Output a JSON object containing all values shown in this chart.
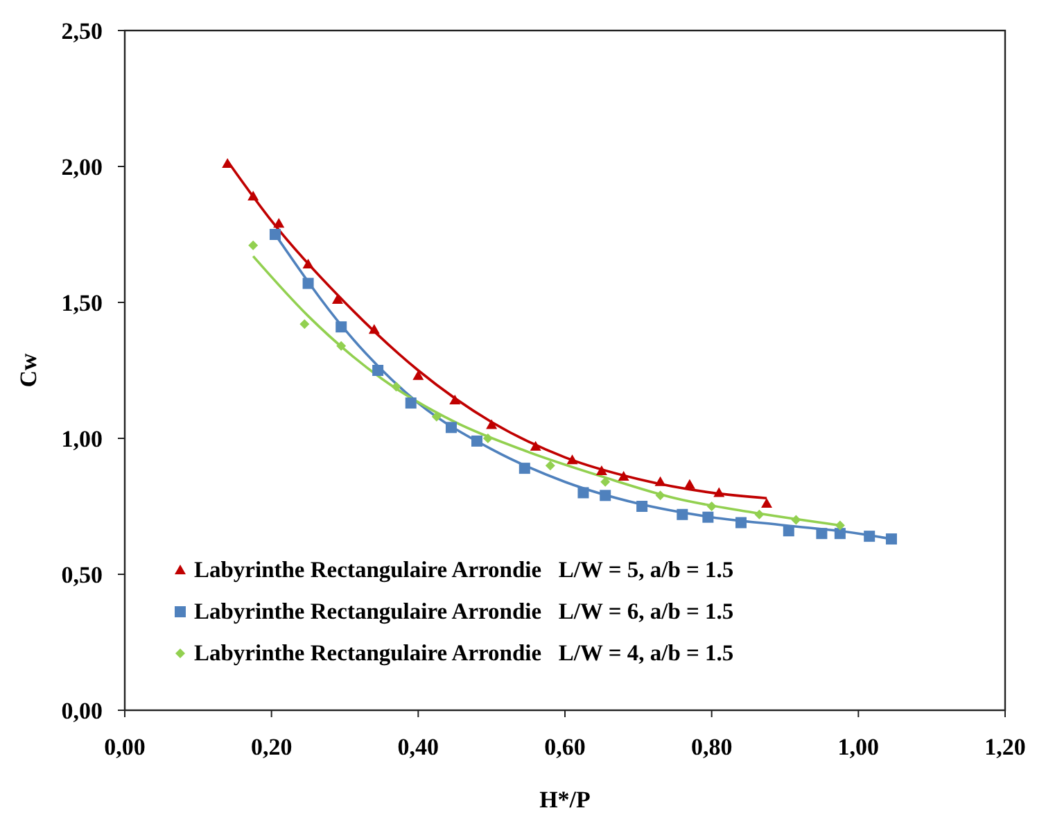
{
  "chart_data": {
    "type": "scatter",
    "xlabel": "H*/P",
    "ylabel": "Cw",
    "xlim": [
      0,
      1.2
    ],
    "xticks": [
      {
        "value": 0,
        "label": "0,00"
      },
      {
        "value": 0.2,
        "label": "0,20"
      },
      {
        "value": 0.4,
        "label": "0,40"
      },
      {
        "value": 0.6,
        "label": "0,60"
      },
      {
        "value": 0.8,
        "label": "0,80"
      },
      {
        "value": 1.0,
        "label": "1,00"
      },
      {
        "value": 1.2,
        "label": "1,20"
      }
    ],
    "ylim": [
      0,
      2.5
    ],
    "yticks": [
      {
        "value": 0,
        "label": "0,00"
      },
      {
        "value": 0.5,
        "label": "0,50"
      },
      {
        "value": 1.0,
        "label": "1,00"
      },
      {
        "value": 1.5,
        "label": "1,50"
      },
      {
        "value": 2.0,
        "label": "2,00"
      },
      {
        "value": 2.5,
        "label": "2,50"
      }
    ],
    "grid": false,
    "legend": "bottom left",
    "series": [
      {
        "name": "Labyrinthe Rectangulaire Arrondie   L/W = 5, a/b = 1.5",
        "color": "#c00000",
        "marker": "triangle",
        "x": [
          0.14,
          0.175,
          0.21,
          0.25,
          0.29,
          0.34,
          0.4,
          0.45,
          0.5,
          0.56,
          0.61,
          0.65,
          0.68,
          0.73,
          0.77,
          0.81,
          0.875
        ],
        "values": [
          2.01,
          1.89,
          1.79,
          1.64,
          1.51,
          1.4,
          1.23,
          1.14,
          1.05,
          0.97,
          0.92,
          0.88,
          0.86,
          0.84,
          0.83,
          0.8,
          0.76
        ]
      },
      {
        "name": "Labyrinthe Rectangulaire Arrondie   L/W = 6, a/b = 1.5",
        "color": "#4f81bd",
        "marker": "square",
        "x": [
          0.205,
          0.25,
          0.295,
          0.345,
          0.39,
          0.445,
          0.48,
          0.545,
          0.625,
          0.655,
          0.705,
          0.76,
          0.795,
          0.84,
          0.905,
          0.95,
          0.975,
          1.015,
          1.045
        ],
        "values": [
          1.75,
          1.57,
          1.41,
          1.25,
          1.13,
          1.04,
          0.99,
          0.89,
          0.8,
          0.79,
          0.75,
          0.72,
          0.71,
          0.69,
          0.66,
          0.65,
          0.65,
          0.64,
          0.63
        ]
      },
      {
        "name": "Labyrinthe Rectangulaire Arrondie   L/W = 4, a/b = 1.5",
        "color": "#92d050",
        "marker": "diamond",
        "x": [
          0.175,
          0.245,
          0.295,
          0.37,
          0.425,
          0.495,
          0.58,
          0.655,
          0.73,
          0.8,
          0.865,
          0.915,
          0.975
        ],
        "values": [
          1.71,
          1.42,
          1.34,
          1.19,
          1.08,
          1.0,
          0.9,
          0.84,
          0.79,
          0.75,
          0.72,
          0.7,
          0.68
        ]
      },
      {
        "type": "line",
        "color": "#c00000",
        "marker": "none",
        "x": [
          0.14,
          0.2,
          0.3,
          0.4,
          0.5,
          0.6,
          0.7,
          0.8,
          0.875
        ],
        "values": [
          2.02,
          1.8,
          1.5,
          1.25,
          1.06,
          0.93,
          0.85,
          0.8,
          0.78
        ]
      },
      {
        "type": "line",
        "color": "#4f81bd",
        "marker": "none",
        "x": [
          0.205,
          0.3,
          0.4,
          0.5,
          0.6,
          0.7,
          0.8,
          0.9,
          1.0,
          1.045
        ],
        "values": [
          1.75,
          1.4,
          1.13,
          0.96,
          0.84,
          0.76,
          0.71,
          0.68,
          0.65,
          0.63
        ]
      },
      {
        "type": "line",
        "color": "#92d050",
        "marker": "none",
        "x": [
          0.175,
          0.25,
          0.35,
          0.45,
          0.55,
          0.65,
          0.75,
          0.85,
          0.975
        ],
        "values": [
          1.67,
          1.45,
          1.22,
          1.06,
          0.95,
          0.86,
          0.78,
          0.73,
          0.68
        ]
      }
    ]
  }
}
